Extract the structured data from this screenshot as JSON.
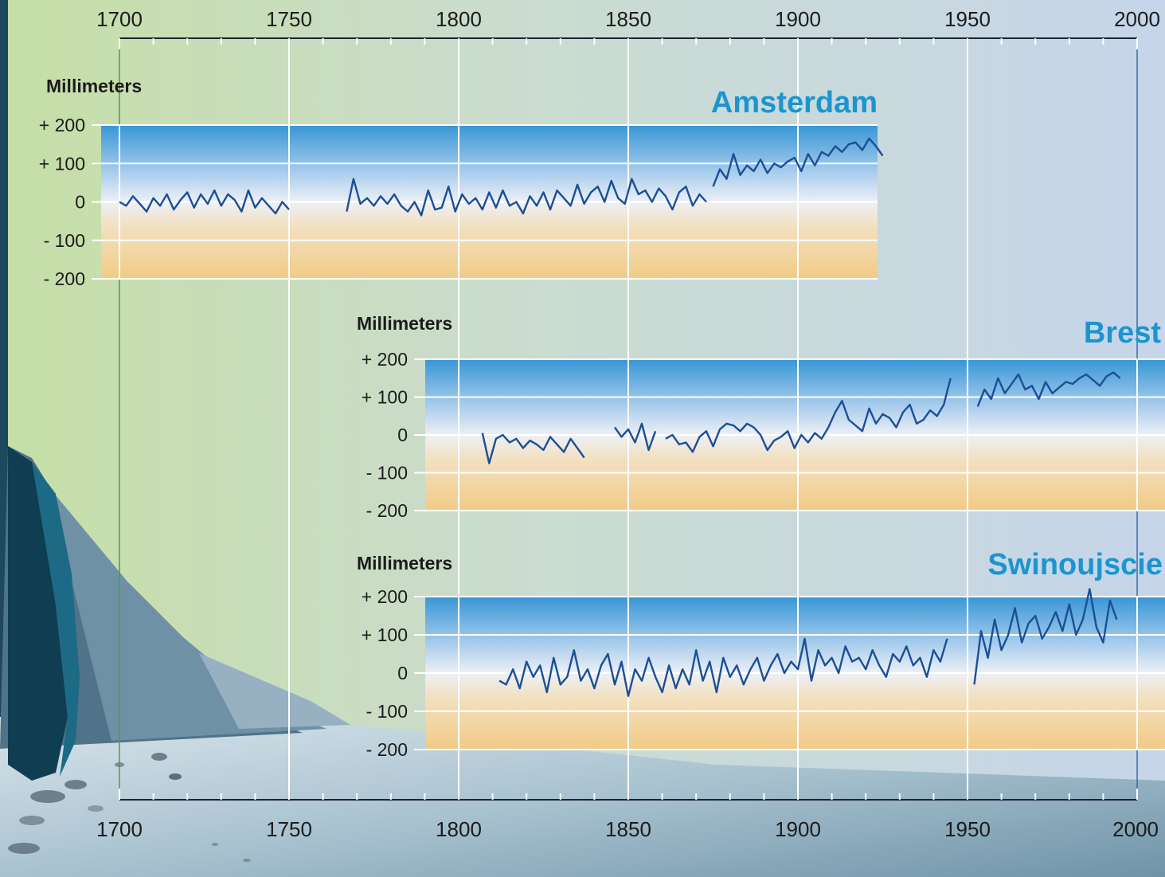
{
  "colors": {
    "line": "#1b4f96",
    "title": "#1b95cf",
    "grid": "#ffffff",
    "positive_band_top": "#3b9ad8",
    "negative_band_bottom": "#f2cf8f",
    "background_left": "#c3dca6",
    "background_right": "#c8d6ea"
  },
  "icons": {
    "background": "coastal-cliff-illustration"
  },
  "chart_data": [
    {
      "type": "line",
      "title": "Amsterdam",
      "ylabel": "Millimeters",
      "xlim": [
        1700,
        2000
      ],
      "ylim": [
        -200,
        200
      ],
      "x_ticks": [
        "1700",
        "1750",
        "1800",
        "1850",
        "1900",
        "1950",
        "2000"
      ],
      "y_ticks": [
        "+ 200",
        "+ 100",
        "0",
        "- 100",
        "- 200"
      ],
      "grid": true,
      "series": [
        {
          "x": [
            1700,
            1702,
            1704,
            1706,
            1708,
            1710,
            1712,
            1714,
            1716,
            1718,
            1720,
            1722,
            1724,
            1726,
            1728,
            1730,
            1732,
            1734,
            1736,
            1738,
            1740,
            1742,
            1744,
            1746,
            1748,
            1750
          ],
          "values": [
            0,
            -10,
            15,
            -5,
            -25,
            10,
            -10,
            20,
            -20,
            5,
            25,
            -15,
            20,
            -5,
            30,
            -10,
            20,
            5,
            -25,
            30,
            -15,
            10,
            -10,
            -30,
            0,
            -20
          ]
        },
        {
          "x": [
            1767,
            1769,
            1771,
            1773,
            1775,
            1777,
            1779,
            1781,
            1783,
            1785,
            1787,
            1789,
            1791,
            1793,
            1795,
            1797,
            1799,
            1801,
            1803,
            1805,
            1807,
            1809,
            1811,
            1813,
            1815,
            1817,
            1819,
            1821,
            1823,
            1825,
            1827,
            1829,
            1831,
            1833,
            1835,
            1837,
            1839,
            1841,
            1843,
            1845,
            1847,
            1849,
            1851,
            1853,
            1855,
            1857,
            1859,
            1861,
            1863,
            1865,
            1867,
            1869,
            1871,
            1873
          ],
          "values": [
            -25,
            60,
            -5,
            10,
            -10,
            15,
            -5,
            20,
            -10,
            -25,
            0,
            -35,
            30,
            -20,
            -15,
            40,
            -25,
            20,
            -5,
            10,
            -20,
            25,
            -15,
            30,
            -10,
            0,
            -30,
            15,
            -10,
            25,
            -20,
            30,
            10,
            -10,
            45,
            -5,
            25,
            40,
            0,
            55,
            10,
            -5,
            60,
            20,
            30,
            0,
            35,
            15,
            -20,
            25,
            40,
            -10,
            20,
            0
          ]
        },
        {
          "x": [
            1875,
            1877,
            1879,
            1881,
            1883,
            1885,
            1887,
            1889,
            1891,
            1893,
            1895,
            1897,
            1899,
            1901,
            1903,
            1905,
            1907,
            1909,
            1911,
            1913,
            1915,
            1917,
            1919,
            1921,
            1923,
            1925
          ],
          "values": [
            40,
            85,
            60,
            125,
            70,
            95,
            80,
            110,
            75,
            100,
            90,
            105,
            115,
            80,
            125,
            95,
            130,
            120,
            145,
            130,
            150,
            155,
            135,
            165,
            145,
            120
          ]
        }
      ]
    },
    {
      "type": "line",
      "title": "Brest",
      "ylabel": "Millimeters",
      "xlim": [
        1700,
        2000
      ],
      "ylim": [
        -200,
        200
      ],
      "y_ticks": [
        "+ 200",
        "+ 100",
        "0",
        "- 100",
        "- 200"
      ],
      "grid": true,
      "series": [
        {
          "x": [
            1807,
            1809,
            1811,
            1813,
            1815,
            1817,
            1819,
            1821,
            1823,
            1825,
            1827,
            1829,
            1831,
            1833,
            1835,
            1837
          ],
          "values": [
            5,
            -75,
            -10,
            0,
            -20,
            -10,
            -35,
            -15,
            -25,
            -40,
            -5,
            -25,
            -45,
            -10,
            -35,
            -60
          ]
        },
        {
          "x": [
            1846,
            1848,
            1850,
            1852,
            1854,
            1856,
            1858
          ],
          "values": [
            20,
            -5,
            15,
            -20,
            30,
            -40,
            10
          ]
        },
        {
          "x": [
            1861,
            1863,
            1865,
            1867,
            1869,
            1871,
            1873,
            1875,
            1877,
            1879,
            1881,
            1883,
            1885,
            1887,
            1889,
            1891,
            1893,
            1895,
            1897,
            1899,
            1901,
            1903,
            1905,
            1907,
            1909,
            1911,
            1913,
            1915,
            1917,
            1919,
            1921,
            1923,
            1925,
            1927,
            1929,
            1931,
            1933,
            1935,
            1937,
            1939,
            1941,
            1943,
            1945
          ],
          "values": [
            -10,
            0,
            -25,
            -20,
            -45,
            -5,
            10,
            -30,
            15,
            30,
            25,
            10,
            30,
            20,
            0,
            -40,
            -15,
            -5,
            10,
            -35,
            0,
            -20,
            5,
            -10,
            20,
            60,
            90,
            40,
            25,
            10,
            70,
            30,
            55,
            45,
            20,
            60,
            80,
            30,
            40,
            65,
            50,
            80,
            150
          ]
        },
        {
          "x": [
            1953,
            1955,
            1957,
            1959,
            1961,
            1963,
            1965,
            1967,
            1969,
            1971,
            1973,
            1975,
            1977,
            1979,
            1981,
            1983,
            1985,
            1987,
            1989,
            1991,
            1993,
            1995
          ],
          "values": [
            75,
            120,
            95,
            150,
            110,
            135,
            160,
            120,
            130,
            95,
            140,
            110,
            125,
            140,
            135,
            150,
            160,
            145,
            130,
            155,
            165,
            150
          ]
        }
      ]
    },
    {
      "type": "line",
      "title": "Swinoujscie",
      "ylabel": "Millimeters",
      "xlim": [
        1700,
        2000
      ],
      "ylim": [
        -200,
        200
      ],
      "y_ticks": [
        "+ 200",
        "+ 100",
        "0",
        "- 100",
        "- 200"
      ],
      "grid": true,
      "series": [
        {
          "x": [
            1812,
            1814,
            1816,
            1818,
            1820,
            1822,
            1824,
            1826,
            1828,
            1830,
            1832,
            1834,
            1836,
            1838,
            1840,
            1842,
            1844,
            1846,
            1848,
            1850,
            1852,
            1854,
            1856,
            1858,
            1860,
            1862,
            1864,
            1866,
            1868,
            1870,
            1872,
            1874,
            1876,
            1878,
            1880,
            1882,
            1884,
            1886,
            1888,
            1890,
            1892,
            1894,
            1896,
            1898,
            1900,
            1902,
            1904,
            1906,
            1908,
            1910,
            1912,
            1914,
            1916,
            1918,
            1920,
            1922,
            1924,
            1926,
            1928,
            1930,
            1932,
            1934,
            1936,
            1938,
            1940,
            1942,
            1944
          ],
          "values": [
            -20,
            -30,
            10,
            -40,
            30,
            -10,
            20,
            -50,
            40,
            -30,
            -10,
            60,
            -20,
            10,
            -40,
            20,
            50,
            -30,
            30,
            -60,
            10,
            -20,
            40,
            -10,
            -50,
            20,
            -40,
            10,
            -30,
            60,
            -20,
            30,
            -50,
            40,
            -10,
            20,
            -30,
            10,
            40,
            -20,
            20,
            50,
            0,
            30,
            10,
            90,
            -20,
            60,
            20,
            40,
            0,
            70,
            30,
            40,
            10,
            60,
            20,
            -10,
            50,
            30,
            70,
            20,
            40,
            -10,
            60,
            30,
            90
          ]
        },
        {
          "x": [
            1952,
            1954,
            1956,
            1958,
            1960,
            1962,
            1964,
            1966,
            1968,
            1970,
            1972,
            1974,
            1976,
            1978,
            1980,
            1982,
            1984,
            1986,
            1988,
            1990,
            1992,
            1994
          ],
          "values": [
            -30,
            110,
            40,
            140,
            60,
            100,
            170,
            80,
            130,
            150,
            90,
            120,
            160,
            110,
            180,
            100,
            140,
            220,
            120,
            80,
            190,
            140
          ]
        }
      ]
    }
  ]
}
